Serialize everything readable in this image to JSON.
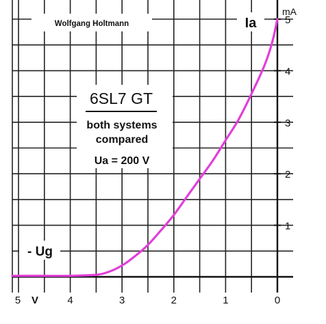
{
  "chart_data": {
    "type": "line",
    "title": "6SL7 GT",
    "subtitle_lines": [
      "both systems",
      "compared"
    ],
    "condition": "Ua = 200 V",
    "author": "Wolfgang Holtmann",
    "xlabel": "- Ug",
    "x_unit": "V",
    "ylabel": "Ia",
    "y_unit": "mA",
    "x_ticks": [
      "5",
      "4",
      "3",
      "2",
      "1",
      "0"
    ],
    "y_ticks": [
      "1",
      "2",
      "3",
      "4",
      "5"
    ],
    "xlim": [
      0,
      5
    ],
    "ylim": [
      0,
      5.2
    ],
    "x_direction": "reversed",
    "grid": true,
    "line_color": "#e040d8",
    "series": [
      {
        "x": [
          5.2,
          4.5,
          4.0,
          3.5,
          3.25,
          3.0,
          2.75,
          2.5,
          2.25,
          2.0,
          1.75,
          1.5,
          1.25,
          1.0,
          0.75,
          0.5,
          0.25,
          0.1,
          0.0
        ],
        "y": [
          0.02,
          0.02,
          0.02,
          0.04,
          0.1,
          0.22,
          0.4,
          0.62,
          0.9,
          1.2,
          1.55,
          1.9,
          2.25,
          2.65,
          3.05,
          3.55,
          4.1,
          4.55,
          5.0
        ]
      }
    ]
  }
}
